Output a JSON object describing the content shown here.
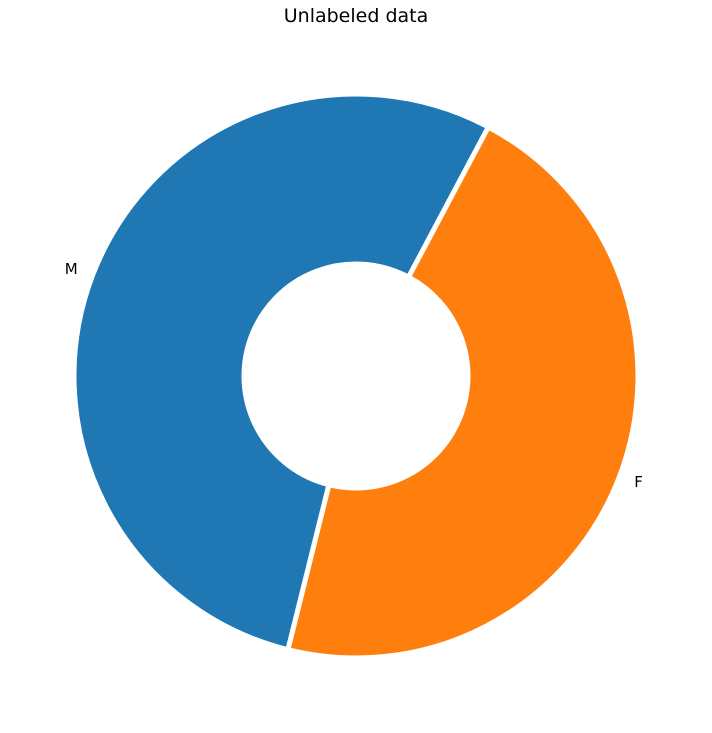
{
  "chart_data": {
    "type": "pie",
    "donut": true,
    "title": "Unlabeled data",
    "start_angle_deg": 62,
    "direction": "counterclockwise",
    "edge_color": "#ffffff",
    "slices": [
      {
        "label": "M",
        "value": 53.9,
        "color": "#1f77b4"
      },
      {
        "label": "F",
        "value": 46.1,
        "color": "#ff7f0e"
      }
    ]
  }
}
